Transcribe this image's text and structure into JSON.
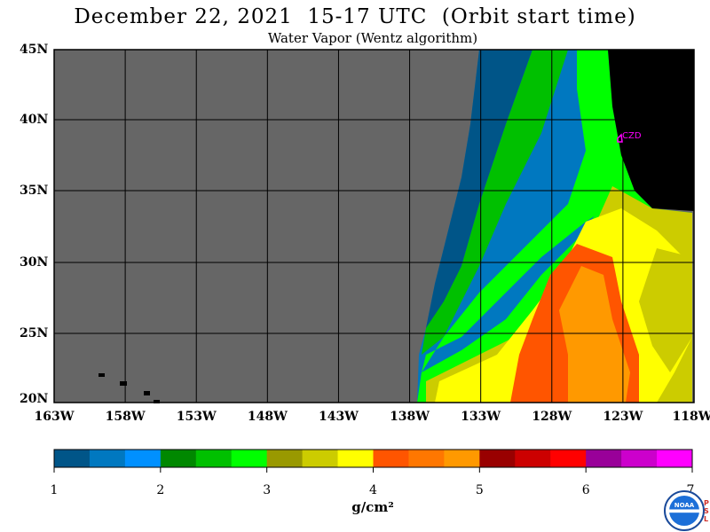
{
  "title": "December 22, 2021  15-17 UTC  (Orbit start time)",
  "subtitle": "Water Vapor (Wentz algorithm)",
  "lat_labels": [
    "45N",
    "40N",
    "35N",
    "30N",
    "25N",
    "20N"
  ],
  "lon_labels": [
    "163W",
    "158W",
    "153W",
    "148W",
    "143W",
    "138W",
    "133W",
    "128W",
    "123W",
    "118W"
  ],
  "station_label": "CZD",
  "colorbar": {
    "colors": [
      "#005588",
      "#0078c0",
      "#0090ff",
      "#008800",
      "#00c000",
      "#00ff00",
      "#999900",
      "#cccc00",
      "#ffff00",
      "#ff5500",
      "#ff7700",
      "#ff9900",
      "#990000",
      "#cc0000",
      "#ff0000",
      "#990099",
      "#cc00cc",
      "#ff00ff"
    ],
    "tick_labels": [
      "1",
      "2",
      "3",
      "4",
      "5",
      "6",
      "7"
    ]
  },
  "unit_label": "g/cm²",
  "logo": {
    "name": "NOAA",
    "side_text": "PSL"
  }
}
